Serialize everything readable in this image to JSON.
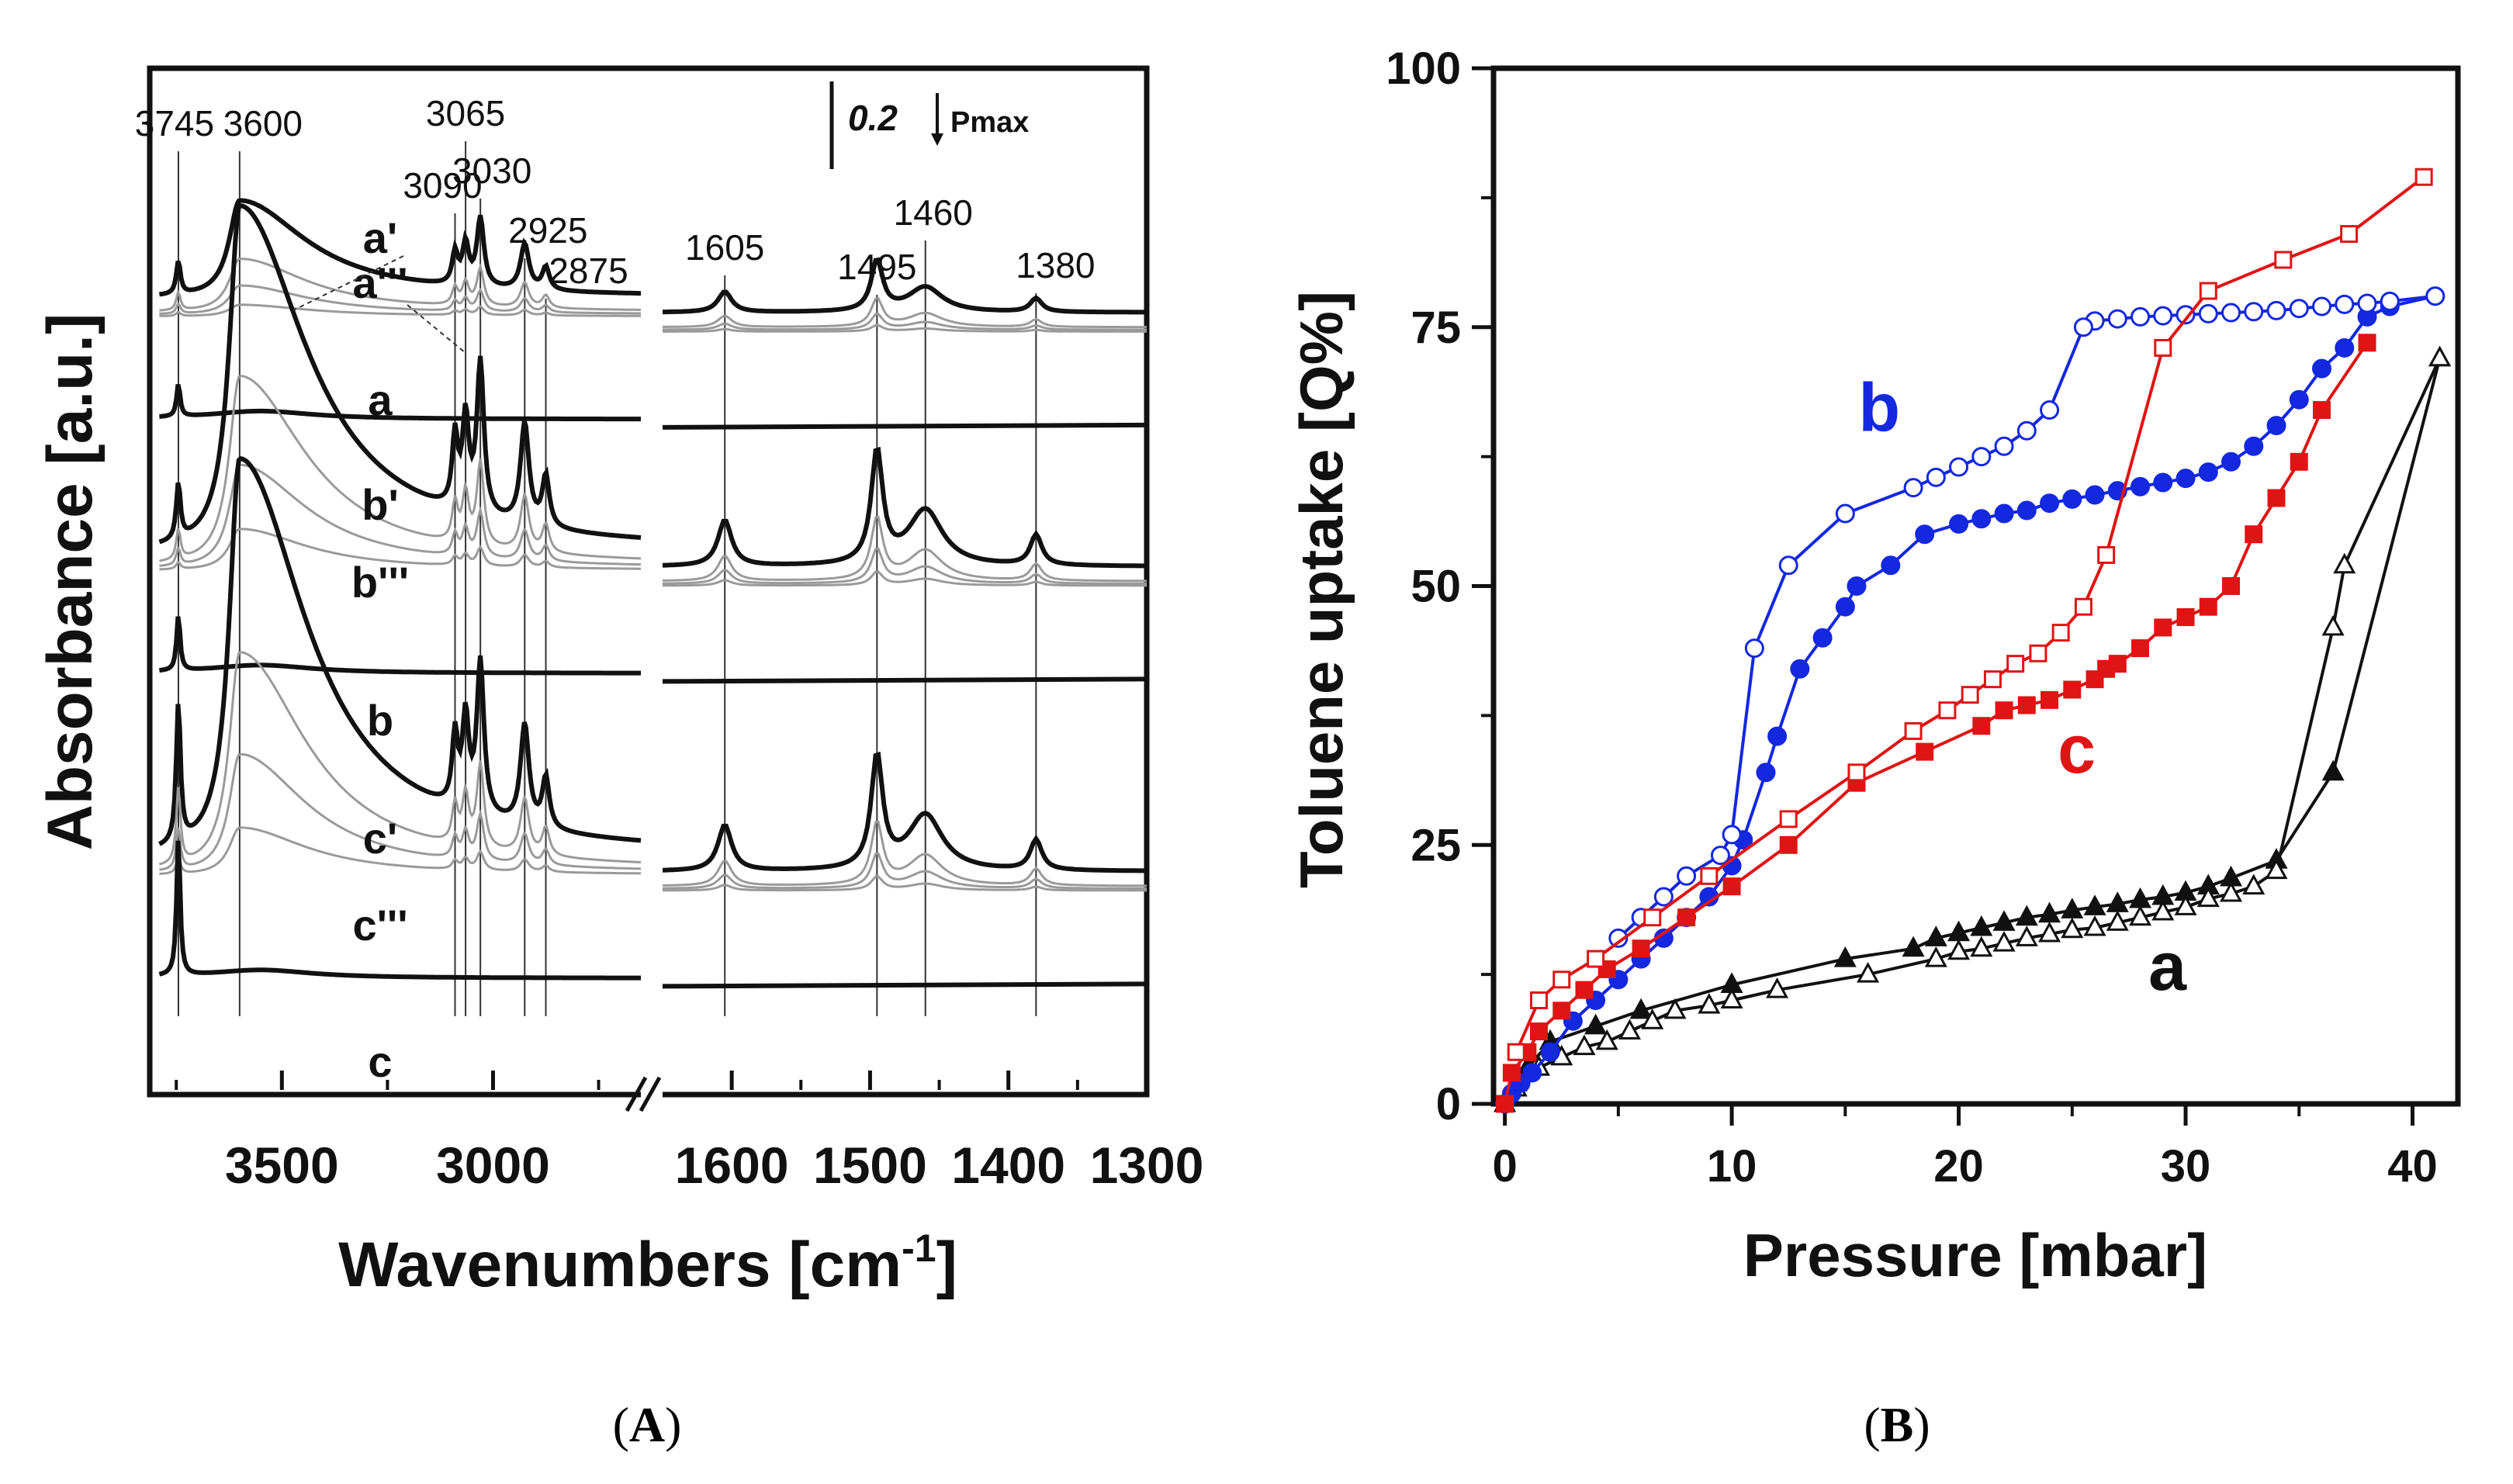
{
  "panel_A": {
    "caption_letter": "A",
    "chart_data": {
      "type": "line",
      "title": "",
      "xlabel": "Wavenumbers [cm",
      "xlabel_sup": "-1",
      "xlabel_close": "]",
      "ylabel": "Absorbance [a.u.]",
      "x_segments": [
        [
          3800,
          2650
        ],
        [
          1650,
          1300
        ]
      ],
      "x_ticks": [
        {
          "v": 3500,
          "label": "3500"
        },
        {
          "v": 3000,
          "label": "3000"
        },
        {
          "v": 1600,
          "label": "1600"
        },
        {
          "v": 1500,
          "label": "1500"
        },
        {
          "v": 1400,
          "label": "1400"
        },
        {
          "v": 1300,
          "label": "1300"
        }
      ],
      "axis_break": "//",
      "scale_bar": {
        "value": "0.2",
        "note": "Pmax"
      },
      "peaks": [
        {
          "label": "3745",
          "v": 3745
        },
        {
          "label": "3600",
          "v": 3600
        },
        {
          "label": "3090",
          "v": 3090
        },
        {
          "label": "3065",
          "v": 3065
        },
        {
          "label": "3030",
          "v": 3030
        },
        {
          "label": "2925",
          "v": 2925
        },
        {
          "label": "2875",
          "v": 2875
        },
        {
          "label": "1605",
          "v": 1605
        },
        {
          "label": "1495",
          "v": 1495
        },
        {
          "label": "1460",
          "v": 1460
        },
        {
          "label": "1380",
          "v": 1380
        }
      ],
      "curve_labels": [
        "a'",
        "a'''",
        "a",
        "b'",
        "b'''",
        "b",
        "c'",
        "c'''",
        "c"
      ],
      "sample_groups": [
        {
          "name": "a",
          "baseline": 0.76,
          "silanol": 0.13,
          "band3600": 0.28,
          "toluene": 0.45
        },
        {
          "name": "b",
          "baseline": 0.51,
          "silanol": 0.22,
          "band3600": 1.0,
          "toluene": 1.0
        },
        {
          "name": "c",
          "baseline": 0.21,
          "silanol": 0.55,
          "band3600": 1.15,
          "toluene": 1.0
        }
      ]
    }
  },
  "panel_B": {
    "caption_letter": "B",
    "chart_data": {
      "type": "line",
      "title": "",
      "xlabel": "Pressure [mbar]",
      "ylabel": "Toluene uptake [Q%]",
      "xlim": [
        -0.5,
        42
      ],
      "ylim": [
        0,
        100
      ],
      "x_ticks": [
        "0",
        "10",
        "20",
        "30",
        "40"
      ],
      "y_ticks": [
        "0",
        "25",
        "50",
        "75",
        "100"
      ],
      "colors": {
        "a": "#111111",
        "b": "#1428e0",
        "c": "#e01414"
      },
      "series_labels": [
        {
          "text": "b",
          "x": 16.5,
          "y": 65,
          "color": "#1428e0"
        },
        {
          "text": "c",
          "x": 25.2,
          "y": 32,
          "color": "#e01414"
        },
        {
          "text": "a",
          "x": 29.2,
          "y": 11,
          "color": "#111111"
        }
      ],
      "series": [
        {
          "name": "a adsorption",
          "color": "#111111",
          "marker": "triangle",
          "filled": true,
          "x": [
            0,
            0.5,
            1,
            2,
            4,
            6,
            10,
            15,
            18,
            19,
            20,
            21,
            22,
            23,
            24,
            25,
            26,
            27,
            28,
            29,
            30,
            31,
            32,
            34,
            36.5,
            41.2
          ],
          "y": [
            0,
            2,
            3.5,
            6,
            7.5,
            9,
            11.5,
            14,
            15,
            16,
            16.5,
            17,
            17.5,
            18,
            18.3,
            18.7,
            19,
            19.3,
            19.7,
            20,
            20.4,
            21,
            21.8,
            23.5,
            32,
            72
          ]
        },
        {
          "name": "a desorption",
          "color": "#111111",
          "marker": "triangle",
          "filled": false,
          "x": [
            41.2,
            37,
            36.5,
            34,
            33,
            32,
            31,
            30,
            29,
            28,
            27,
            26,
            25,
            24,
            23,
            22,
            21,
            20,
            19,
            16,
            12,
            10,
            9,
            7.5,
            6.5,
            5.5,
            4.5,
            3.5,
            2.5,
            1.5,
            0.5
          ],
          "y": [
            72,
            52,
            46,
            22.5,
            21,
            20.3,
            19.8,
            19,
            18.5,
            18,
            17.5,
            17,
            16.8,
            16.4,
            16,
            15.5,
            15,
            14.7,
            14,
            12.5,
            11,
            10,
            9.5,
            9,
            8,
            7,
            6,
            5.5,
            4.5,
            3.5,
            1.5
          ]
        },
        {
          "name": "b adsorption",
          "color": "#1428e0",
          "marker": "circle",
          "filled": true,
          "x": [
            0,
            0.3,
            0.7,
            1.2,
            2,
            3,
            4,
            5,
            6,
            7,
            8,
            9,
            10,
            10.5,
            11.5,
            12,
            13,
            14,
            15,
            15.5,
            17,
            18.5,
            20,
            21,
            22,
            23,
            24,
            25,
            26,
            27,
            28,
            29,
            30,
            31,
            32,
            33,
            34,
            35,
            36,
            37,
            38,
            39,
            41
          ],
          "y": [
            0,
            1,
            2,
            3,
            5,
            8,
            10,
            12,
            14,
            16,
            18,
            20,
            23,
            25.5,
            32,
            35.5,
            42,
            45,
            48,
            50,
            52,
            55,
            56,
            56.5,
            57,
            57.3,
            58,
            58.4,
            58.8,
            59.2,
            59.6,
            60,
            60.4,
            61,
            62,
            63.5,
            65.5,
            68,
            71,
            73,
            76,
            77,
            78
          ]
        },
        {
          "name": "b desorption",
          "color": "#1428e0",
          "marker": "circle",
          "filled": false,
          "x": [
            41,
            39,
            38,
            37,
            36,
            35,
            34,
            33,
            32,
            31,
            30,
            29,
            28,
            27,
            26,
            25.5,
            24,
            23,
            22,
            21,
            20,
            19,
            18,
            15,
            12.5,
            11,
            10,
            9.5,
            8,
            7,
            6,
            5
          ],
          "y": [
            78,
            77.5,
            77.3,
            77.2,
            77,
            76.8,
            76.6,
            76.5,
            76.4,
            76.3,
            76.2,
            76.1,
            76,
            75.8,
            75.6,
            75,
            67,
            65,
            63.5,
            62.5,
            61.5,
            60.5,
            59.5,
            57,
            52,
            44,
            26,
            24,
            22,
            20,
            18,
            16
          ]
        },
        {
          "name": "c adsorption",
          "color": "#e01414",
          "marker": "square",
          "filled": true,
          "x": [
            0,
            0.3,
            1,
            1.5,
            2.5,
            3.5,
            4.5,
            6,
            8,
            10,
            12.5,
            15.5,
            18.5,
            21,
            22,
            23,
            24,
            25,
            26,
            26.5,
            27,
            28,
            29,
            30,
            31,
            32,
            33,
            34,
            35,
            36,
            38
          ],
          "y": [
            0,
            3,
            5,
            7,
            9,
            11,
            13,
            15,
            18,
            21,
            25,
            31,
            34,
            36.5,
            38,
            38.5,
            39,
            40,
            41,
            42,
            42.5,
            44,
            46,
            47,
            48,
            50,
            55,
            58.5,
            62,
            67,
            73.5
          ]
        },
        {
          "name": "c desorption",
          "color": "#e01414",
          "marker": "square",
          "filled": false,
          "x": [
            40.5,
            37.2,
            34.3,
            31,
            29,
            26.5,
            25.5,
            24.5,
            23.5,
            22.5,
            21.5,
            20.5,
            19.5,
            18,
            15.5,
            12.5,
            9,
            6.5,
            4,
            2.5,
            1.5,
            0.5
          ],
          "y": [
            89.5,
            84,
            81.5,
            78.5,
            73,
            53,
            48,
            45.5,
            43.5,
            42.5,
            41,
            39.5,
            38,
            36,
            32,
            27.5,
            22,
            18,
            14,
            12,
            10,
            5
          ]
        }
      ]
    }
  }
}
